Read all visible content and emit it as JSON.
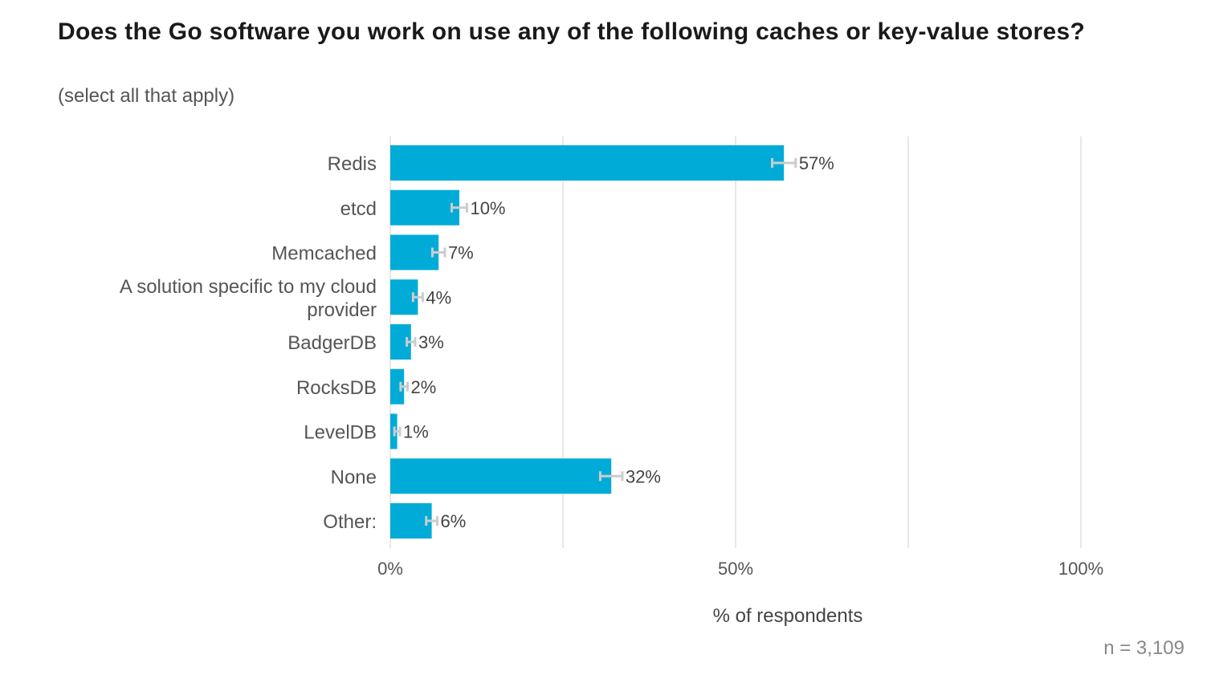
{
  "title": "Does the Go software you work on use any of the following caches or key-value stores?",
  "subtitle": "(select all that apply)",
  "sample_note": "n =  3,109",
  "colors": {
    "bar": "#00acd7",
    "grid": "#e8e8e8",
    "error_bar": "#cccccc"
  },
  "chart_data": {
    "type": "bar",
    "orientation": "horizontal",
    "categories": [
      "Redis",
      "etcd",
      "Memcached",
      "A solution specific to my cloud provider",
      "BadgerDB",
      "RocksDB",
      "LevelDB",
      "None",
      "Other:"
    ],
    "category_lines": [
      [
        "Redis"
      ],
      [
        "etcd"
      ],
      [
        "Memcached"
      ],
      [
        "A solution specific to my cloud",
        "provider"
      ],
      [
        "BadgerDB"
      ],
      [
        "RocksDB"
      ],
      [
        "LevelDB"
      ],
      [
        "None"
      ],
      [
        "Other:"
      ]
    ],
    "values": [
      57,
      10,
      7,
      4,
      3,
      2,
      1,
      32,
      6
    ],
    "value_labels": [
      "57%",
      "10%",
      "7%",
      "4%",
      "3%",
      "2%",
      "1%",
      "32%",
      "6%"
    ],
    "error_margin": [
      1.7,
      1.1,
      0.9,
      0.7,
      0.6,
      0.5,
      0.4,
      1.6,
      0.8
    ],
    "xlabel": "% of respondents",
    "ylabel": "",
    "xlim": [
      0,
      100
    ],
    "x_ticks": [
      0,
      50,
      100
    ],
    "x_tick_labels": [
      "0%",
      "50%",
      "100%"
    ],
    "grid": true
  }
}
